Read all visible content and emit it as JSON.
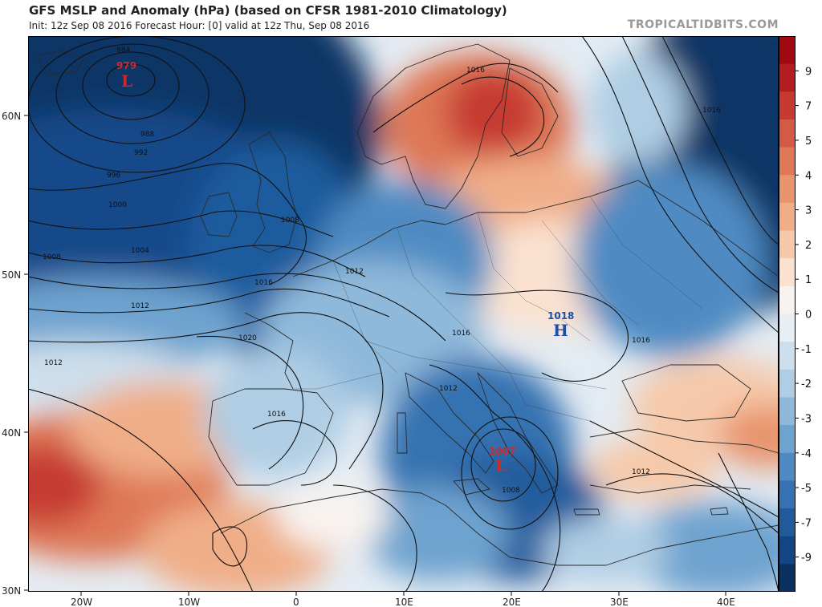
{
  "header": {
    "title": "GFS MSLP and Anomaly (hPa) (based on CFSR 1981-2010 Climatology)",
    "subtitle": "Init: 12z Sep 08 2016   Forecast Hour: [0]   valid at 12z Thu, Sep 08 2016",
    "credit": "TROPICALTIDBITS.COM"
  },
  "axes": {
    "lat_labels": [
      "60N",
      "50N",
      "40N",
      "30N"
    ],
    "lon_labels": [
      "20W",
      "10W",
      "0",
      "10E",
      "20E",
      "30E",
      "40E"
    ]
  },
  "colorbar": {
    "labels": [
      "9",
      "7",
      "5",
      "4",
      "3",
      "2",
      "1",
      "0",
      "-1",
      "-2",
      "-3",
      "-4",
      "-5",
      "-7",
      "-9"
    ],
    "colors_top_to_bottom": [
      "#9e0a0f",
      "#b51c20",
      "#c63a31",
      "#d35a44",
      "#de7857",
      "#e8946d",
      "#f0ae88",
      "#f6c9aa",
      "#fbe2d0",
      "#f8f3ef",
      "#e7eef4",
      "#cddfec",
      "#afcde4",
      "#8fb9da",
      "#6ea3cf",
      "#4f8bc2",
      "#3472b1",
      "#215b9c",
      "#134584",
      "#0b3163"
    ]
  },
  "systems": [
    {
      "type": "L",
      "value": "979",
      "color": "#cc2b2b"
    },
    {
      "type": "H",
      "value": "1018",
      "color": "#1e4fa8"
    },
    {
      "type": "L",
      "value": "1007",
      "color": "#cc2b2b"
    }
  ],
  "isobar_labels": [
    "984",
    "988",
    "992",
    "996",
    "1000",
    "1004",
    "1008",
    "1008",
    "1012",
    "1016",
    "1020",
    "1016",
    "1016",
    "1012",
    "1012",
    "1016",
    "1016",
    "1008",
    "1012",
    "1016",
    "1012"
  ]
}
